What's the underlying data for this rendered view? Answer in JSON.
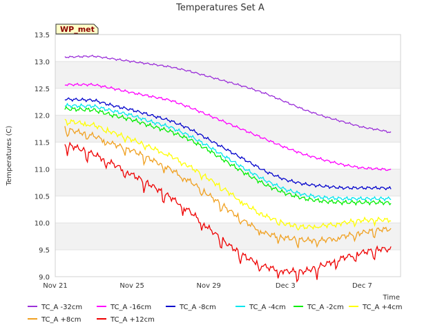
{
  "chart_data": {
    "type": "line",
    "title": "Temperatures Set A",
    "xlabel": "Time",
    "ylabel": "Temperatures (C)",
    "badge": "WP_met",
    "ylim": [
      9.0,
      13.5
    ],
    "xlim_days": [
      0,
      18
    ],
    "yticks": [
      "9.0",
      "9.5",
      "10.0",
      "10.5",
      "11.0",
      "11.5",
      "12.0",
      "12.5",
      "13.0",
      "13.5"
    ],
    "xticks": [
      "Nov 21",
      "Nov 25",
      "Nov 29",
      "Dec 3",
      "Dec 7"
    ],
    "grid": "alternating horizontal bands",
    "x_days": [
      0.5,
      2,
      3,
      4,
      5,
      6,
      7,
      8,
      9,
      10,
      11,
      12,
      13,
      14,
      15,
      16,
      17,
      17.5
    ],
    "series": [
      {
        "name": "TC_A -32cm",
        "color": "#9b30d9",
        "values": [
          13.08,
          13.1,
          13.05,
          13.0,
          12.95,
          12.9,
          12.82,
          12.72,
          12.62,
          12.52,
          12.4,
          12.25,
          12.1,
          11.98,
          11.88,
          11.78,
          11.72,
          11.68
        ]
      },
      {
        "name": "TC_A -16cm",
        "color": "#ff00ff",
        "values": [
          12.57,
          12.57,
          12.5,
          12.42,
          12.35,
          12.28,
          12.15,
          12.0,
          11.85,
          11.7,
          11.55,
          11.4,
          11.27,
          11.17,
          11.08,
          11.02,
          11.0,
          10.98
        ]
      },
      {
        "name": "TC_A -8cm",
        "color": "#0000cc",
        "values": [
          12.3,
          12.28,
          12.18,
          12.1,
          12.0,
          11.9,
          11.75,
          11.55,
          11.35,
          11.15,
          10.95,
          10.8,
          10.72,
          10.68,
          10.65,
          10.65,
          10.65,
          10.64
        ]
      },
      {
        "name": "TC_A -4cm",
        "color": "#00e5ee",
        "values": [
          12.18,
          12.17,
          12.08,
          12.0,
          11.88,
          11.78,
          11.62,
          11.42,
          11.2,
          10.98,
          10.78,
          10.62,
          10.52,
          10.47,
          10.45,
          10.45,
          10.45,
          10.45
        ]
      },
      {
        "name": "TC_A -2cm",
        "color": "#00ee00",
        "values": [
          12.12,
          12.1,
          12.0,
          11.92,
          11.8,
          11.7,
          11.55,
          11.35,
          11.12,
          10.9,
          10.7,
          10.55,
          10.45,
          10.4,
          10.38,
          10.38,
          10.38,
          10.37
        ]
      },
      {
        "name": "TC_A +4cm",
        "color": "#ffff00",
        "values": [
          11.9,
          11.82,
          11.68,
          11.55,
          11.4,
          11.25,
          11.05,
          10.82,
          10.58,
          10.32,
          10.12,
          9.98,
          9.92,
          9.95,
          10.0,
          10.05,
          10.06,
          10.05
        ]
      },
      {
        "name": "TC_A +8cm",
        "color": "#f0a020",
        "values": [
          11.75,
          11.62,
          11.47,
          11.35,
          11.18,
          11.0,
          10.78,
          10.52,
          10.25,
          10.0,
          9.8,
          9.72,
          9.68,
          9.68,
          9.75,
          9.82,
          9.88,
          9.88
        ]
      },
      {
        "name": "TC_A +12cm",
        "color": "#ee0000",
        "values": [
          11.48,
          11.28,
          11.1,
          10.9,
          10.7,
          10.48,
          10.22,
          9.9,
          9.6,
          9.35,
          9.18,
          9.1,
          9.1,
          9.22,
          9.35,
          9.45,
          9.52,
          9.5
        ]
      }
    ]
  }
}
